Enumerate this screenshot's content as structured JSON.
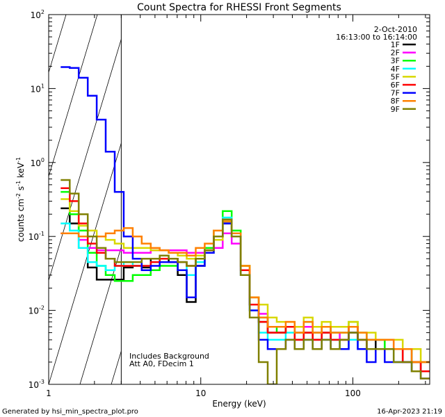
{
  "chart_data": {
    "type": "line",
    "title": "Count Spectra for RHESSI Front Segments",
    "xlabel": "Energy (keV)",
    "ylabel": "counts cm",
    "ylabel_sup1": "-2",
    "ylabel_mid": " s",
    "ylabel_sup2": "-1",
    "ylabel_end": " keV",
    "ylabel_sup3": "-1",
    "x_scale": "log",
    "y_scale": "log",
    "xlim": [
      1,
      320
    ],
    "ylim": [
      0.001,
      100
    ],
    "x_ticks": [
      {
        "v": 1,
        "label": "1"
      },
      {
        "v": 10,
        "label": "10"
      },
      {
        "v": 100,
        "label": "100"
      }
    ],
    "y_ticks": [
      {
        "v": 100,
        "base": "10",
        "exp": "2"
      },
      {
        "v": 10,
        "base": "10",
        "exp": "1"
      },
      {
        "v": 1,
        "base": "10",
        "exp": "0"
      },
      {
        "v": 0.1,
        "base": "10",
        "exp": "-1"
      },
      {
        "v": 0.01,
        "base": "10",
        "exp": "-2"
      },
      {
        "v": 0.001,
        "base": "10",
        "exp": "-3"
      }
    ],
    "hatch_region": {
      "from": 1,
      "to": 3
    },
    "header_lines": [
      "2-Oct-2010",
      "16:13:00 to 16:14:00"
    ],
    "notes": [
      "Includes Background",
      "Att A0, FDecim 1"
    ],
    "series": [
      {
        "name": "1F",
        "color": "#000000",
        "values": [
          0.24,
          0.15,
          0.07,
          0.038,
          0.026,
          0.026,
          0.026,
          0.038,
          0.04,
          0.038,
          0.05,
          0.05,
          0.045,
          0.03,
          0.013,
          0.04,
          0.06,
          0.1,
          0.15,
          0.1,
          0.03,
          0.012,
          0.007,
          0.005,
          0.005,
          0.006,
          0.004,
          0.005,
          0.004,
          0.005,
          0.004,
          0.004,
          0.005,
          0.004,
          0.003,
          0.004,
          0.003,
          0.003,
          0.002,
          0.002,
          0.0015
        ]
      },
      {
        "name": "2F",
        "color": "#ff00ff",
        "values": [
          0.11,
          0.11,
          0.09,
          0.07,
          0.065,
          0.065,
          0.065,
          0.06,
          0.06,
          0.06,
          0.065,
          0.065,
          0.065,
          0.065,
          0.06,
          0.06,
          0.065,
          0.07,
          0.11,
          0.08,
          0.035,
          0.015,
          0.009,
          0.006,
          0.006,
          0.006,
          0.005,
          0.006,
          0.005,
          0.006,
          0.005,
          0.004,
          0.006,
          0.004,
          0.004,
          0.004,
          0.004,
          0.003,
          0.003,
          0.002,
          0.002
        ]
      },
      {
        "name": "3F",
        "color": "#00ff00",
        "values": [
          0.4,
          0.2,
          0.12,
          0.06,
          0.04,
          0.03,
          0.025,
          0.025,
          0.03,
          0.03,
          0.035,
          0.04,
          0.04,
          0.035,
          0.03,
          0.05,
          0.07,
          0.12,
          0.22,
          0.12,
          0.04,
          0.015,
          0.008,
          0.006,
          0.005,
          0.006,
          0.005,
          0.007,
          0.005,
          0.006,
          0.005,
          0.005,
          0.007,
          0.005,
          0.004,
          0.004,
          0.003,
          0.003,
          0.003,
          0.002,
          0.002
        ]
      },
      {
        "name": "4F",
        "color": "#00ffff",
        "values": [
          0.15,
          0.12,
          0.07,
          0.045,
          0.04,
          0.035,
          0.04,
          0.045,
          0.04,
          0.04,
          0.045,
          0.05,
          0.05,
          0.045,
          0.03,
          0.045,
          0.06,
          0.1,
          0.18,
          0.1,
          0.03,
          0.01,
          0.005,
          0.004,
          0.004,
          0.005,
          0.003,
          0.004,
          0.003,
          0.004,
          0.004,
          0.003,
          0.004,
          0.003,
          0.003,
          0.003,
          0.003,
          0.002,
          0.002,
          0.0015,
          0.0015
        ]
      },
      {
        "name": "5F",
        "color": "#d8d800",
        "values": [
          0.32,
          0.22,
          0.14,
          0.12,
          0.1,
          0.09,
          0.08,
          0.07,
          0.07,
          0.07,
          0.065,
          0.065,
          0.06,
          0.055,
          0.05,
          0.055,
          0.065,
          0.09,
          0.16,
          0.1,
          0.04,
          0.015,
          0.012,
          0.008,
          0.007,
          0.007,
          0.006,
          0.008,
          0.006,
          0.007,
          0.006,
          0.006,
          0.007,
          0.005,
          0.005,
          0.004,
          0.004,
          0.004,
          0.003,
          0.003,
          0.002
        ]
      },
      {
        "name": "6F",
        "color": "#ff0000",
        "values": [
          0.45,
          0.3,
          0.15,
          0.08,
          0.06,
          0.05,
          0.04,
          0.04,
          0.04,
          0.04,
          0.045,
          0.05,
          0.05,
          0.045,
          0.04,
          0.05,
          0.065,
          0.1,
          0.17,
          0.1,
          0.035,
          0.012,
          0.007,
          0.005,
          0.005,
          0.006,
          0.004,
          0.005,
          0.004,
          0.005,
          0.004,
          0.004,
          0.006,
          0.004,
          0.003,
          0.003,
          0.003,
          0.003,
          0.002,
          0.002,
          0.0015
        ]
      },
      {
        "name": "7F",
        "color": "#0000ff",
        "values": [
          19.5,
          19,
          14,
          8,
          3.8,
          1.4,
          0.4,
          0.1,
          0.05,
          0.035,
          0.04,
          0.045,
          0.045,
          0.035,
          0.015,
          0.04,
          0.06,
          0.1,
          0.15,
          0.1,
          0.03,
          0.01,
          0.004,
          0.003,
          0.003,
          0.004,
          0.003,
          0.004,
          0.003,
          0.004,
          0.003,
          0.003,
          0.005,
          0.003,
          0.002,
          0.003,
          0.002,
          0.002,
          0.002,
          0.0015,
          0.0012
        ]
      },
      {
        "name": "8F",
        "color": "#ff8000",
        "values": [
          0.11,
          0.11,
          0.1,
          0.1,
          0.1,
          0.11,
          0.12,
          0.13,
          0.1,
          0.08,
          0.07,
          0.065,
          0.06,
          0.06,
          0.055,
          0.07,
          0.08,
          0.12,
          0.16,
          0.11,
          0.04,
          0.015,
          0.008,
          0.006,
          0.006,
          0.007,
          0.005,
          0.007,
          0.005,
          0.006,
          0.005,
          0.005,
          0.006,
          0.005,
          0.004,
          0.004,
          0.004,
          0.003,
          0.003,
          0.002,
          0.002
        ]
      },
      {
        "name": "9F",
        "color": "#808000",
        "values": [
          0.58,
          0.38,
          0.2,
          0.1,
          0.07,
          0.05,
          0.045,
          0.045,
          0.045,
          0.05,
          0.05,
          0.055,
          0.05,
          0.045,
          0.04,
          0.05,
          0.065,
          0.1,
          0.17,
          0.1,
          0.03,
          0.008,
          0.002,
          0.001,
          0.003,
          0.004,
          0.003,
          0.004,
          0.003,
          0.004,
          0.003,
          0.004,
          0.005,
          0.004,
          0.003,
          0.003,
          0.003,
          0.002,
          0.002,
          0.0015,
          0.0012
        ]
      }
    ],
    "legend_position": "top-right"
  },
  "footer": {
    "generated": "Generated by hsi_min_spectra_plot.pro",
    "timestamp": "16-Apr-2023 21:19"
  }
}
